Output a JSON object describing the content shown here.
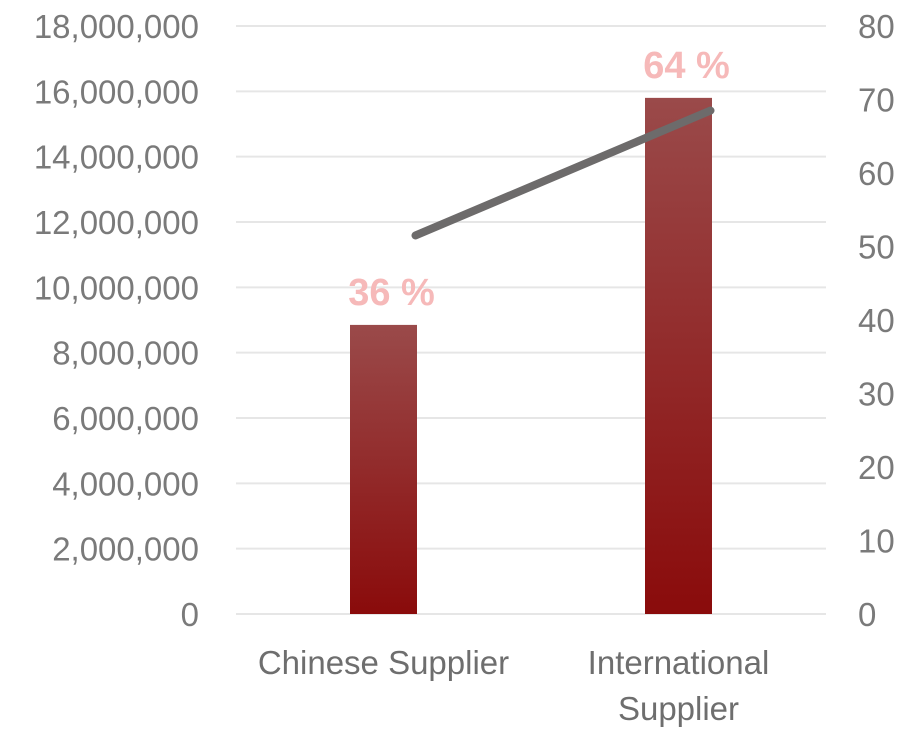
{
  "chart_data": {
    "type": "bar",
    "title": "",
    "xlabel": "",
    "ylabel": "",
    "categories": [
      [
        "Chinese Supplier"
      ],
      [
        "International",
        "Supplier"
      ]
    ],
    "series": [
      {
        "type": "bar",
        "axis": "left",
        "values": [
          8850000,
          15800000
        ],
        "data_labels": [
          "36 %",
          "64 %"
        ]
      },
      {
        "type": "line",
        "axis": "right",
        "values": [
          51.5,
          68.5
        ]
      }
    ],
    "ylim_left": [
      0,
      18000000
    ],
    "ylim_right": [
      0,
      80
    ],
    "yticks_left": [
      "0",
      "2,000,000",
      "4,000,000",
      "6,000,000",
      "8,000,000",
      "10,000,000",
      "12,000,000",
      "14,000,000",
      "16,000,000",
      "18,000,000"
    ],
    "yticks_right": [
      "0",
      "10",
      "20",
      "30",
      "40",
      "50",
      "60",
      "70",
      "80"
    ],
    "grid": true,
    "legend": "none",
    "colors": {
      "bar_top": "#9a4a4a",
      "bar_bottom": "#8a0b0b",
      "line": "#6d6b6b",
      "data_label": "#f6b9b9",
      "grid": "#e6e6e6",
      "tick_text": "#7a7a7a"
    }
  }
}
